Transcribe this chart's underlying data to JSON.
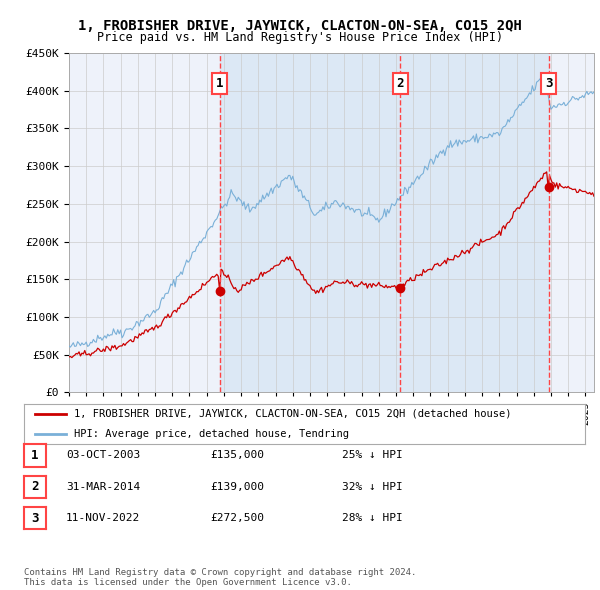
{
  "title": "1, FROBISHER DRIVE, JAYWICK, CLACTON-ON-SEA, CO15 2QH",
  "subtitle": "Price paid vs. HM Land Registry's House Price Index (HPI)",
  "legend_line1": "1, FROBISHER DRIVE, JAYWICK, CLACTON-ON-SEA, CO15 2QH (detached house)",
  "legend_line2": "HPI: Average price, detached house, Tendring",
  "transactions": [
    {
      "num": 1,
      "date": "03-OCT-2003",
      "price": 135000,
      "pct": "25%",
      "dir": "↓",
      "date_decimal": 2003.75
    },
    {
      "num": 2,
      "date": "31-MAR-2014",
      "price": 139000,
      "pct": "32%",
      "dir": "↓",
      "date_decimal": 2014.25
    },
    {
      "num": 3,
      "date": "11-NOV-2022",
      "price": 272500,
      "pct": "28%",
      "dir": "↓",
      "date_decimal": 2022.87
    }
  ],
  "footer": "Contains HM Land Registry data © Crown copyright and database right 2024.\nThis data is licensed under the Open Government Licence v3.0.",
  "background_color": "#ffffff",
  "plot_bg_color": "#eef2fa",
  "shaded_bg_color": "#dce8f5",
  "grid_color": "#cccccc",
  "hpi_line_color": "#7ab0d8",
  "price_line_color": "#cc0000",
  "dashed_line_color": "#ff4444",
  "marker_color": "#cc0000",
  "ylim": [
    0,
    450000
  ],
  "yticks": [
    0,
    50000,
    100000,
    150000,
    200000,
    250000,
    300000,
    350000,
    400000,
    450000
  ],
  "xlim_start": 1995.0,
  "xlim_end": 2025.5
}
